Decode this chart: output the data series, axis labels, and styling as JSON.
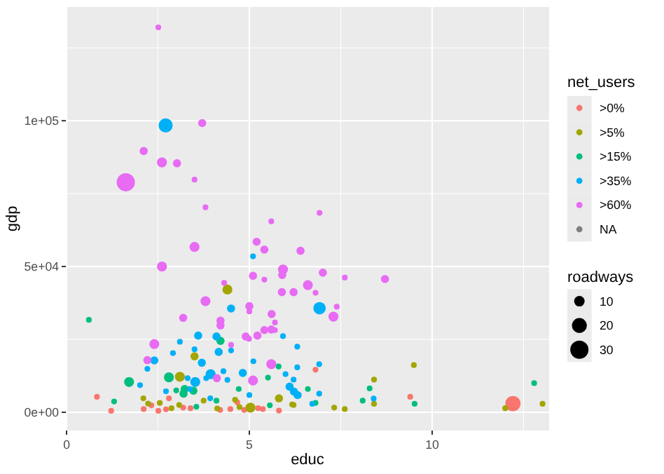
{
  "chart_data": {
    "type": "bubble",
    "xlabel": "educ",
    "ylabel": "gdp",
    "legend_title": "net_users",
    "annotations": [
      "roadways"
    ],
    "xlim": [
      -0.02,
      13.2
    ],
    "xticks": [
      0,
      5,
      10
    ],
    "ylim": [
      -6250,
      139000
    ],
    "yticks": [
      {
        "value": 0,
        "label": "0e+00"
      },
      {
        "value": 50000,
        "label": "5e+04"
      },
      {
        "value": 100000,
        "label": "1e+05"
      }
    ],
    "grid": true,
    "legend": "right",
    "marker": "circle",
    "size_legend": [
      10,
      20,
      30
    ],
    "series": [
      {
        "name": ">0%",
        "color": "#f8766d",
        "x": [
          0.83,
          2.32,
          2.8,
          4.67,
          4.2,
          4.48,
          5.24,
          5.81,
          1.22,
          2.11,
          2.51,
          2.72,
          3.39,
          3.19,
          4.86,
          5.37,
          6.81,
          9.4,
          12.21
        ],
        "values": [
          5300,
          2400,
          4800,
          3400,
          800,
          1100,
          1400,
          600,
          500,
          1100,
          500,
          1000,
          1400,
          1600,
          800,
          1100,
          14600,
          5300,
          3000
        ],
        "sizes": [
          3,
          3,
          3,
          3,
          3,
          3,
          3,
          3,
          3,
          3,
          3,
          3,
          3,
          3,
          3,
          3,
          3,
          3,
          21
        ]
      },
      {
        "name": ">5%",
        "color": "#a3a500",
        "x": [
          4.4,
          3.5,
          3.1,
          5.81,
          2.1,
          2.23,
          2.55,
          3.75,
          4.61,
          4.12,
          4.73,
          5.03,
          6.17,
          2.87,
          3.08,
          9.5,
          8.41,
          8.41,
          6.21,
          7.32,
          7.61,
          12.0,
          13.02
        ],
        "values": [
          42100,
          19200,
          12200,
          4800,
          4800,
          3000,
          3200,
          4000,
          4300,
          1300,
          1800,
          1600,
          2700,
          1400,
          2500,
          16200,
          11200,
          2900,
          2500,
          1600,
          1100,
          1400,
          2900
        ],
        "sizes": [
          9,
          6,
          9,
          6,
          3,
          3,
          3,
          3,
          3,
          3,
          3,
          9,
          3,
          3,
          3,
          3,
          3,
          3,
          3,
          3,
          3,
          3,
          3
        ]
      },
      {
        "name": ">15%",
        "color": "#00bf7d",
        "x": [
          0.61,
          4.21,
          5.8,
          2.8,
          1.71,
          5.51,
          3.23,
          3.0,
          3.47,
          3.2,
          4.71,
          1.3,
          4.1,
          5.56,
          3.55,
          6.6,
          8.29,
          8.1,
          9.52,
          6.81,
          12.79
        ],
        "values": [
          31700,
          24500,
          15700,
          12000,
          10400,
          11900,
          8000,
          7500,
          7400,
          6400,
          8000,
          3700,
          4000,
          2400,
          1900,
          8000,
          8200,
          4000,
          2900,
          3200,
          10000
        ],
        "sizes": [
          3,
          6,
          3,
          9,
          9,
          3,
          6,
          3,
          6,
          6,
          3,
          3,
          3,
          3,
          3,
          3,
          3,
          3,
          3,
          3,
          3
        ]
      },
      {
        "name": ">35%",
        "color": "#00b0f6",
        "x": [
          2.71,
          5.1,
          4.5,
          3.6,
          4.1,
          3.1,
          5.92,
          4.16,
          3.5,
          4.5,
          2.91,
          2.4,
          3.7,
          2.21,
          5.11,
          4.29,
          3.94,
          3.82,
          4.4,
          4.82,
          5.99,
          3.31,
          2.01,
          3.52,
          6.1,
          3.37,
          2.72,
          5.0,
          3.93,
          6.92,
          6.31,
          6.91,
          6.31,
          6.21,
          6.22,
          6.32,
          6.91,
          8.4,
          6.72
        ],
        "values": [
          98400,
          53500,
          35600,
          26300,
          26000,
          24200,
          26100,
          20700,
          21600,
          21200,
          20300,
          17800,
          17000,
          14900,
          17500,
          14100,
          13100,
          11700,
          11100,
          13500,
          13100,
          11700,
          9300,
          10400,
          8800,
          8000,
          7200,
          5900,
          4800,
          35700,
          22500,
          16500,
          15400,
          11200,
          7100,
          5900,
          6400,
          4700,
          2900
        ],
        "sizes": [
          18,
          3,
          6,
          6,
          6,
          3,
          3,
          6,
          3,
          3,
          3,
          6,
          6,
          3,
          3,
          3,
          9,
          3,
          3,
          6,
          3,
          3,
          3,
          9,
          6,
          3,
          3,
          3,
          3,
          14,
          3,
          3,
          3,
          3,
          6,
          6,
          3,
          3,
          3
        ]
      },
      {
        "name": ">60%",
        "color": "#e76bf3",
        "x": [
          2.51,
          3.71,
          2.11,
          2.61,
          3.02,
          1.62,
          3.5,
          3.8,
          5.6,
          6.92,
          3.5,
          2.61,
          5.2,
          5.41,
          5.92,
          5.9,
          5.1,
          5.41,
          4.31,
          5.89,
          3.8,
          5.0,
          5.0,
          5.61,
          3.19,
          4.21,
          4.21,
          5.7,
          5.6,
          5.7,
          5.41,
          5.22,
          4.9,
          4.99,
          2.4,
          4.5,
          2.21,
          5.6,
          4.11,
          5.1,
          6.4,
          7.01,
          7.61,
          8.71,
          6.6,
          6.21,
          6.81,
          7.39,
          7.3
        ],
        "values": [
          132000,
          99200,
          89600,
          85700,
          85400,
          78900,
          79800,
          70300,
          65500,
          68400,
          56700,
          50000,
          58500,
          55800,
          49000,
          47100,
          46800,
          45500,
          44400,
          41200,
          38100,
          36400,
          34600,
          33700,
          32400,
          31400,
          29800,
          30800,
          28400,
          28200,
          28200,
          26300,
          26000,
          25200,
          23400,
          23100,
          17900,
          16500,
          11700,
          10900,
          55400,
          47900,
          46200,
          45700,
          43600,
          41200,
          41000,
          36200,
          32800
        ],
        "sizes": [
          3,
          6,
          6,
          9,
          6,
          30,
          3,
          3,
          3,
          3,
          9,
          9,
          6,
          6,
          9,
          6,
          6,
          3,
          3,
          6,
          9,
          6,
          3,
          6,
          6,
          6,
          6,
          3,
          6,
          3,
          6,
          6,
          6,
          3,
          9,
          3,
          6,
          9,
          6,
          9,
          6,
          6,
          3,
          6,
          9,
          6,
          3,
          3,
          9
        ]
      },
      {
        "name": "NA",
        "color": "#7f7f7f"
      }
    ]
  }
}
